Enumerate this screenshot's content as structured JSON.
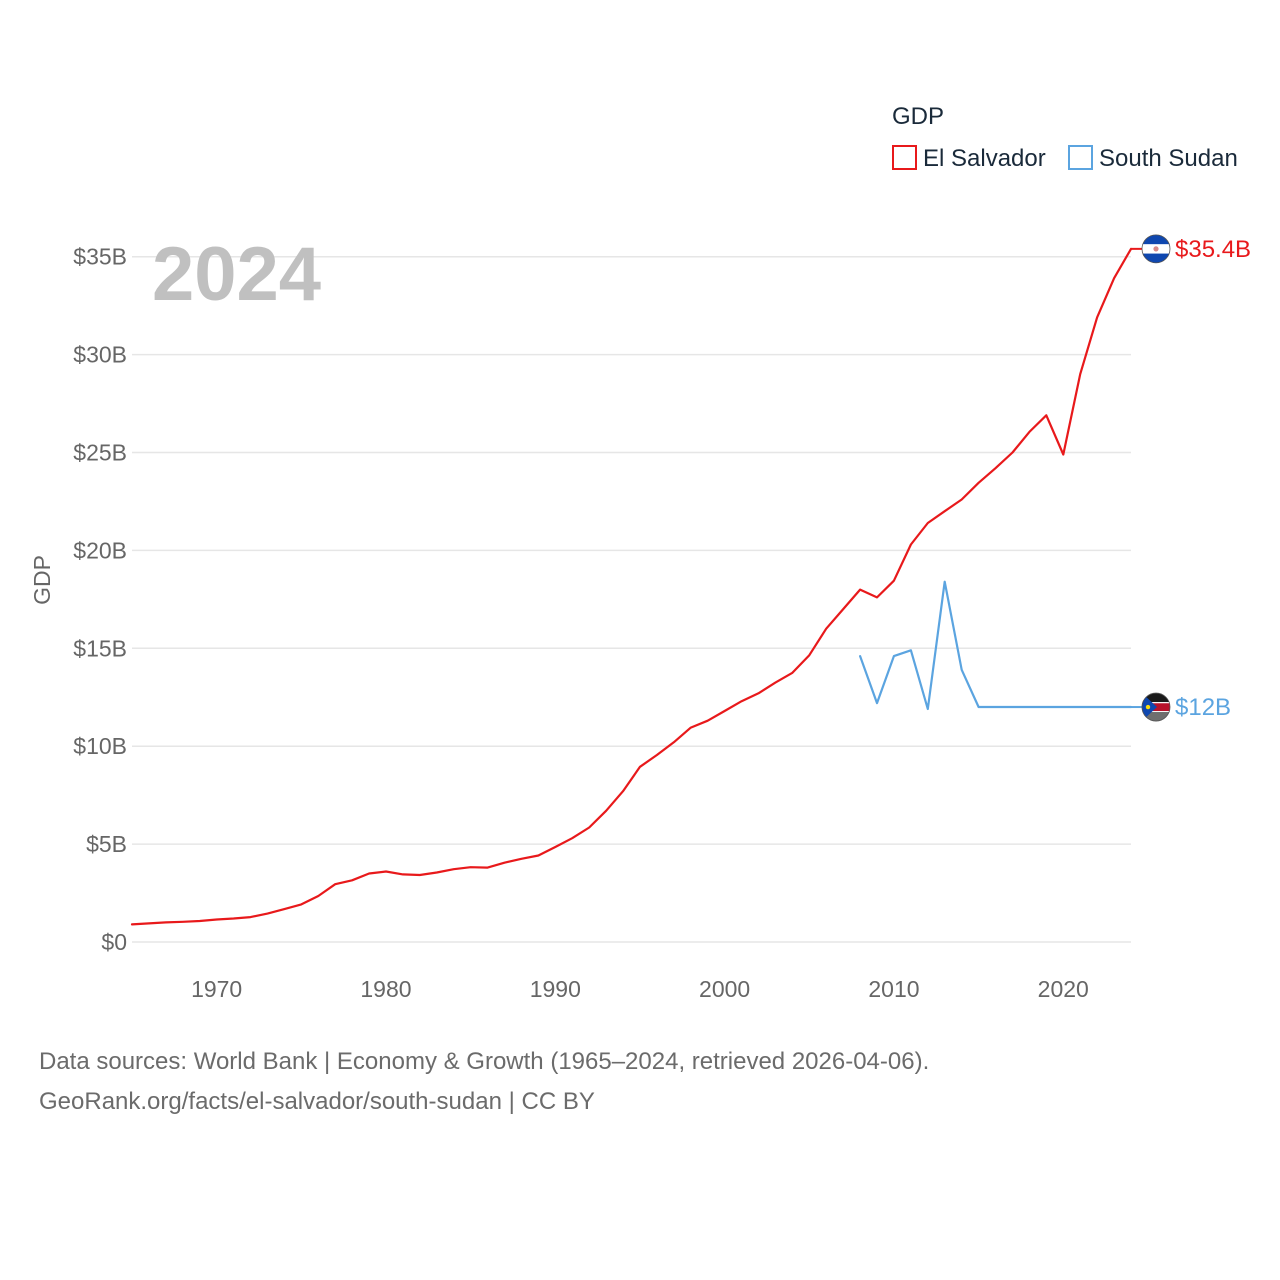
{
  "chart_data": {
    "type": "line",
    "title": "",
    "xlabel": "",
    "ylabel": "GDP",
    "year_label": "2024",
    "xlim": [
      1965,
      2024
    ],
    "ylim": [
      0,
      36.5
    ],
    "x_ticks": [
      1970,
      1980,
      1990,
      2000,
      2010,
      2020
    ],
    "x_tick_labels": [
      "1970",
      "1980",
      "1990",
      "2000",
      "2010",
      "2020"
    ],
    "y_ticks": [
      0,
      5,
      10,
      15,
      20,
      25,
      30,
      35
    ],
    "y_tick_labels": [
      "$0",
      "$5B",
      "$10B",
      "$15B",
      "$20B",
      "$25B",
      "$30B",
      "$35B"
    ],
    "legend": {
      "title": "GDP",
      "position": "top-right",
      "entries": [
        "El Salvador",
        "South Sudan"
      ]
    },
    "series": [
      {
        "name": "El Salvador",
        "color": "#e8191b",
        "end_label": "$35.4B",
        "x": [
          1965,
          1966,
          1967,
          1968,
          1969,
          1970,
          1971,
          1972,
          1973,
          1974,
          1975,
          1976,
          1977,
          1978,
          1979,
          1980,
          1981,
          1982,
          1983,
          1984,
          1985,
          1986,
          1987,
          1988,
          1989,
          1990,
          1991,
          1992,
          1993,
          1994,
          1995,
          1996,
          1997,
          1998,
          1999,
          2000,
          2001,
          2002,
          2003,
          2004,
          2005,
          2006,
          2007,
          2008,
          2009,
          2010,
          2011,
          2012,
          2013,
          2014,
          2015,
          2016,
          2017,
          2018,
          2019,
          2020,
          2021,
          2022,
          2023,
          2024
        ],
        "values": [
          0.9,
          0.95,
          1.0,
          1.03,
          1.07,
          1.15,
          1.2,
          1.27,
          1.45,
          1.68,
          1.92,
          2.35,
          2.95,
          3.15,
          3.5,
          3.6,
          3.45,
          3.42,
          3.55,
          3.72,
          3.82,
          3.8,
          4.05,
          4.25,
          4.42,
          4.85,
          5.3,
          5.85,
          6.7,
          7.7,
          8.95,
          9.55,
          10.2,
          10.95,
          11.3,
          11.8,
          12.3,
          12.7,
          13.25,
          13.75,
          14.65,
          16.0,
          17.0,
          18.0,
          17.6,
          18.45,
          20.3,
          21.4,
          22.0,
          22.6,
          23.45,
          24.2,
          25.0,
          26.05,
          26.9,
          24.9,
          29.0,
          31.9,
          33.9,
          35.4
        ]
      },
      {
        "name": "South Sudan",
        "color": "#5ba4e0",
        "end_label": "$12B",
        "x": [
          2008,
          2009,
          2010,
          2011,
          2012,
          2013,
          2014,
          2015,
          2016,
          2017,
          2018,
          2019,
          2020,
          2021,
          2022,
          2023,
          2024
        ],
        "values": [
          14.6,
          12.2,
          14.6,
          14.9,
          11.9,
          18.4,
          13.9,
          12.0,
          12.0,
          12.0,
          12.0,
          12.0,
          12.0,
          12.0,
          12.0,
          12.0,
          12.0
        ]
      }
    ]
  },
  "footer": {
    "source_line1": "Data sources: World Bank | Economy & Growth (1965–2024, retrieved 2026-04-06).",
    "source_line2": "GeoRank.org/facts/el-salvador/south-sudan | CC BY"
  }
}
